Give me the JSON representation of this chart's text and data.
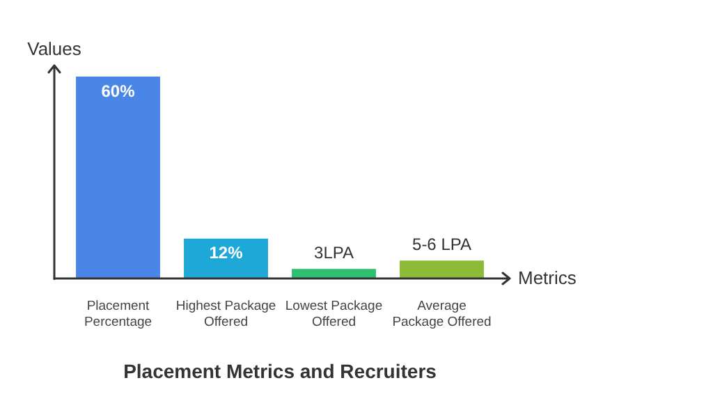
{
  "chart_data": {
    "type": "bar",
    "title": "Placement Metrics and Recruiters",
    "xlabel": "Metrics",
    "ylabel": "Values",
    "categories": [
      [
        "Placement",
        "Percentage"
      ],
      [
        "Highest Package",
        "Offered"
      ],
      [
        "Lowest Package",
        "Offered"
      ],
      [
        "Average",
        "Package Offered"
      ]
    ],
    "values": [
      60,
      12,
      3,
      5.5
    ],
    "value_labels": [
      "60%",
      "12%",
      "3LPA",
      "5-6 LPA"
    ],
    "colors": [
      "#4a86e8",
      "#1ea8d8",
      "#2fbf71",
      "#8dbb37"
    ],
    "grid": false,
    "legend": false
  }
}
